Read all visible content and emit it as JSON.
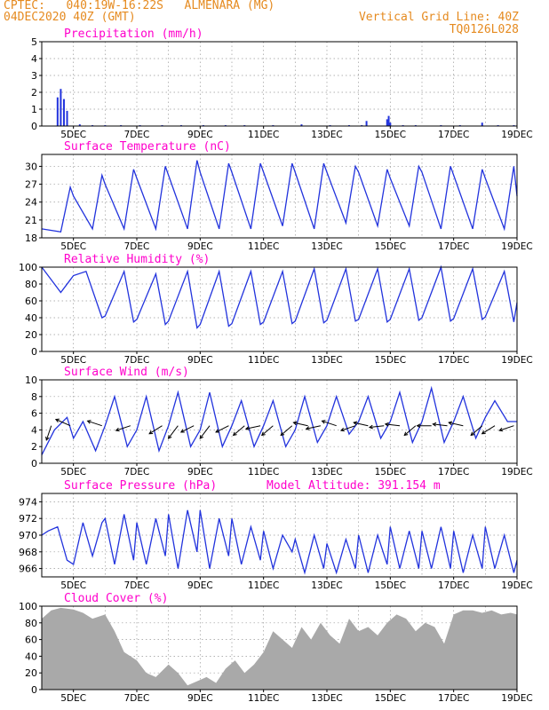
{
  "header": {
    "line1_left": "CPTEC:   040:19W-16:22S   ALMENARA (MG)",
    "line2_left": "04DEC2020 40Z (GMT)",
    "line2_right": "Vertical Grid Line: 40Z",
    "line3_right": "TQ0126L028",
    "model_altitude": "Model Altitude: 391.154 m"
  },
  "x_axis": {
    "start_day": 4,
    "end_day": 19,
    "tick_labels": [
      "5DEC",
      "7DEC",
      "9DEC",
      "11DEC",
      "13DEC",
      "15DEC",
      "17DEC",
      "19DEC"
    ]
  },
  "colors": {
    "header": "#e58a1f",
    "title": "#ff00cc",
    "line": "#2233dd",
    "bars": "#2233dd",
    "cloud": "#a9a9a9",
    "wind_arrow": "#000000",
    "grid": "#999999"
  },
  "chart_data": [
    {
      "id": "precip",
      "type": "bar",
      "title": "Precipitation (mm/h)",
      "ylim": [
        0,
        5
      ],
      "yticks": [
        0,
        1,
        2,
        3,
        4,
        5
      ],
      "x": [
        4.5,
        4.6,
        4.7,
        4.8,
        5.2,
        5.6,
        6.0,
        6.5,
        7.1,
        7.8,
        8.4,
        9.1,
        9.8,
        10.4,
        11.3,
        12.2,
        13.1,
        13.7,
        14.1,
        14.25,
        14.9,
        14.95,
        15.0,
        15.4,
        15.8,
        16.6,
        17.2,
        17.9,
        18.4,
        18.9
      ],
      "values": [
        1.7,
        2.2,
        1.6,
        0.9,
        0.1,
        0.05,
        0.05,
        0.05,
        0.05,
        0.05,
        0.05,
        0.05,
        0.05,
        0.05,
        0.05,
        0.1,
        0.05,
        0.05,
        0.05,
        0.3,
        0.4,
        0.6,
        0.2,
        0.05,
        0.05,
        0.05,
        0.05,
        0.2,
        0.05,
        0.05
      ]
    },
    {
      "id": "temp",
      "type": "line",
      "title": "Surface Temperature (nC)",
      "ylim": [
        18,
        32
      ],
      "yticks": [
        18,
        21,
        24,
        27,
        30
      ],
      "x": [
        4.0,
        4.6,
        4.9,
        5.0,
        5.6,
        5.9,
        6.0,
        6.6,
        6.9,
        7.0,
        7.6,
        7.9,
        8.0,
        8.6,
        8.9,
        9.0,
        9.6,
        9.9,
        10.0,
        10.6,
        10.9,
        11.0,
        11.6,
        11.9,
        12.0,
        12.6,
        12.9,
        13.0,
        13.6,
        13.9,
        14.0,
        14.6,
        14.9,
        15.0,
        15.6,
        15.9,
        16.0,
        16.6,
        16.9,
        17.0,
        17.6,
        17.9,
        18.0,
        18.6,
        18.9,
        19.0
      ],
      "values": [
        19.5,
        19.0,
        26.5,
        25.0,
        19.5,
        28.5,
        27.0,
        19.5,
        29.5,
        28.0,
        19.5,
        30.0,
        28.5,
        19.5,
        31.0,
        29.0,
        19.5,
        30.5,
        29.0,
        19.5,
        30.5,
        29.0,
        20.0,
        30.5,
        29.0,
        19.5,
        30.5,
        29.0,
        20.5,
        30.0,
        29.0,
        20.0,
        29.5,
        28.0,
        20.0,
        30.0,
        29.0,
        19.5,
        30.0,
        28.5,
        19.5,
        29.5,
        28.0,
        19.5,
        30.0,
        25.0
      ]
    },
    {
      "id": "rh",
      "type": "line",
      "title": "Relative Humidity (%)",
      "ylim": [
        0,
        100
      ],
      "yticks": [
        0,
        20,
        40,
        60,
        80,
        100
      ],
      "x": [
        4.0,
        4.4,
        4.6,
        4.9,
        5.0,
        5.4,
        5.9,
        6.0,
        6.6,
        6.9,
        7.0,
        7.6,
        7.9,
        8.0,
        8.6,
        8.9,
        9.0,
        9.6,
        9.9,
        10.0,
        10.6,
        10.9,
        11.0,
        11.6,
        11.9,
        12.0,
        12.6,
        12.9,
        13.0,
        13.6,
        13.9,
        14.0,
        14.6,
        14.9,
        15.0,
        15.6,
        15.9,
        16.0,
        16.6,
        16.9,
        17.0,
        17.6,
        17.9,
        18.0,
        18.6,
        18.9,
        19.0
      ],
      "values": [
        100,
        80,
        70,
        85,
        90,
        95,
        40,
        42,
        95,
        35,
        38,
        92,
        32,
        36,
        95,
        28,
        32,
        95,
        30,
        33,
        95,
        32,
        35,
        95,
        33,
        36,
        98,
        34,
        37,
        98,
        36,
        38,
        98,
        35,
        38,
        98,
        37,
        40,
        100,
        36,
        39,
        98,
        38,
        41,
        95,
        35,
        58
      ]
    },
    {
      "id": "wind",
      "type": "line",
      "title": "Surface Wind (m/s)",
      "ylim": [
        0,
        10
      ],
      "yticks": [
        0,
        2,
        4,
        6,
        8,
        10
      ],
      "x": [
        4.0,
        4.4,
        4.8,
        5.0,
        5.3,
        5.7,
        6.0,
        6.3,
        6.7,
        7.0,
        7.3,
        7.7,
        8.0,
        8.3,
        8.7,
        9.0,
        9.3,
        9.7,
        10.0,
        10.3,
        10.7,
        11.0,
        11.3,
        11.7,
        12.0,
        12.3,
        12.7,
        13.0,
        13.3,
        13.7,
        14.0,
        14.3,
        14.7,
        15.0,
        15.3,
        15.7,
        16.0,
        16.3,
        16.7,
        17.0,
        17.3,
        17.7,
        18.0,
        18.3,
        18.7,
        19.0
      ],
      "values": [
        1.0,
        4.0,
        5.5,
        3.0,
        5.0,
        1.5,
        4.5,
        8.0,
        2.0,
        4.0,
        8.0,
        1.5,
        4.5,
        8.5,
        2.0,
        4.0,
        8.5,
        2.0,
        4.5,
        7.5,
        2.0,
        4.5,
        7.5,
        2.0,
        4.0,
        8.0,
        2.5,
        4.5,
        8.0,
        3.5,
        5.0,
        8.0,
        3.0,
        5.0,
        8.5,
        2.5,
        5.0,
        9.0,
        2.5,
        5.0,
        8.0,
        3.0,
        5.5,
        7.5,
        5.0,
        5.0
      ],
      "arrows": {
        "x": [
          4.3,
          4.9,
          5.9,
          6.8,
          7.8,
          8.3,
          8.8,
          9.3,
          9.9,
          10.4,
          10.9,
          11.3,
          11.9,
          12.4,
          12.8,
          13.3,
          13.9,
          14.3,
          14.8,
          15.3,
          15.8,
          16.3,
          16.8,
          17.3,
          17.9,
          18.3,
          18.9
        ],
        "dx": [
          -0.3,
          -0.9,
          -0.9,
          -0.9,
          -0.8,
          -0.6,
          -0.8,
          -0.6,
          -0.8,
          -0.7,
          -0.9,
          -0.7,
          -0.7,
          -0.9,
          -0.9,
          -0.9,
          -0.9,
          -0.9,
          -0.9,
          -0.9,
          -0.7,
          -0.9,
          -0.9,
          -0.9,
          -0.7,
          -0.8,
          -0.9
        ],
        "dy": [
          -0.9,
          0.4,
          0.3,
          -0.3,
          -0.5,
          -0.8,
          -0.4,
          -0.8,
          -0.4,
          -0.6,
          -0.2,
          -0.6,
          -0.6,
          0.2,
          -0.2,
          0.3,
          -0.3,
          0.2,
          -0.1,
          0.1,
          -0.6,
          0.0,
          0.1,
          0.2,
          -0.6,
          -0.5,
          -0.3
        ]
      }
    },
    {
      "id": "pressure",
      "type": "line",
      "title": "Surface Pressure (hPa)",
      "ylim": [
        965,
        975
      ],
      "yticks": [
        966,
        968,
        970,
        972,
        974
      ],
      "x": [
        4.0,
        4.2,
        4.5,
        4.8,
        5.0,
        5.3,
        5.6,
        5.9,
        6.0,
        6.3,
        6.6,
        6.9,
        7.0,
        7.3,
        7.6,
        7.9,
        8.0,
        8.3,
        8.6,
        8.9,
        9.0,
        9.3,
        9.6,
        9.9,
        10.0,
        10.3,
        10.6,
        10.9,
        11.0,
        11.3,
        11.6,
        11.9,
        12.0,
        12.3,
        12.6,
        12.9,
        13.0,
        13.3,
        13.6,
        13.9,
        14.0,
        14.3,
        14.6,
        14.9,
        15.0,
        15.3,
        15.6,
        15.9,
        16.0,
        16.3,
        16.6,
        16.9,
        17.0,
        17.3,
        17.6,
        17.9,
        18.0,
        18.3,
        18.6,
        18.9,
        19.0
      ],
      "values": [
        970.0,
        970.5,
        971.0,
        967.0,
        966.5,
        971.5,
        967.5,
        971.5,
        972.0,
        966.5,
        972.5,
        967.0,
        971.5,
        966.5,
        972.0,
        967.5,
        972.5,
        966.0,
        973.0,
        968.0,
        973.0,
        966.0,
        972.0,
        967.5,
        972.0,
        966.5,
        971.0,
        967.0,
        970.5,
        966.0,
        970.0,
        968.0,
        969.5,
        965.5,
        970.0,
        966.0,
        969.0,
        965.5,
        969.5,
        966.0,
        970.0,
        965.5,
        970.0,
        966.5,
        971.0,
        966.0,
        970.5,
        966.0,
        970.5,
        966.0,
        971.0,
        966.0,
        970.5,
        965.5,
        970.0,
        966.0,
        971.0,
        966.0,
        970.0,
        965.5,
        967.0
      ]
    },
    {
      "id": "cloud",
      "type": "area",
      "title": "Cloud Cover (%)",
      "ylim": [
        0,
        100
      ],
      "yticks": [
        0,
        20,
        40,
        60,
        80,
        100
      ],
      "x": [
        4.0,
        4.3,
        4.6,
        5.0,
        5.3,
        5.6,
        6.0,
        6.3,
        6.6,
        7.0,
        7.3,
        7.6,
        8.0,
        8.3,
        8.6,
        8.9,
        9.2,
        9.5,
        9.8,
        10.1,
        10.4,
        10.7,
        11.0,
        11.3,
        11.6,
        11.9,
        12.2,
        12.5,
        12.8,
        13.1,
        13.4,
        13.7,
        14.0,
        14.3,
        14.6,
        14.9,
        15.2,
        15.5,
        15.8,
        16.1,
        16.4,
        16.7,
        17.0,
        17.3,
        17.6,
        17.9,
        18.2,
        18.5,
        18.8,
        19.0
      ],
      "values": [
        85,
        95,
        98,
        96,
        92,
        85,
        90,
        70,
        45,
        35,
        20,
        15,
        30,
        20,
        5,
        10,
        15,
        8,
        25,
        35,
        20,
        30,
        45,
        70,
        60,
        50,
        75,
        60,
        80,
        65,
        55,
        85,
        70,
        75,
        65,
        80,
        90,
        85,
        70,
        80,
        75,
        55,
        90,
        95,
        95,
        92,
        95,
        90,
        92,
        90
      ]
    }
  ]
}
